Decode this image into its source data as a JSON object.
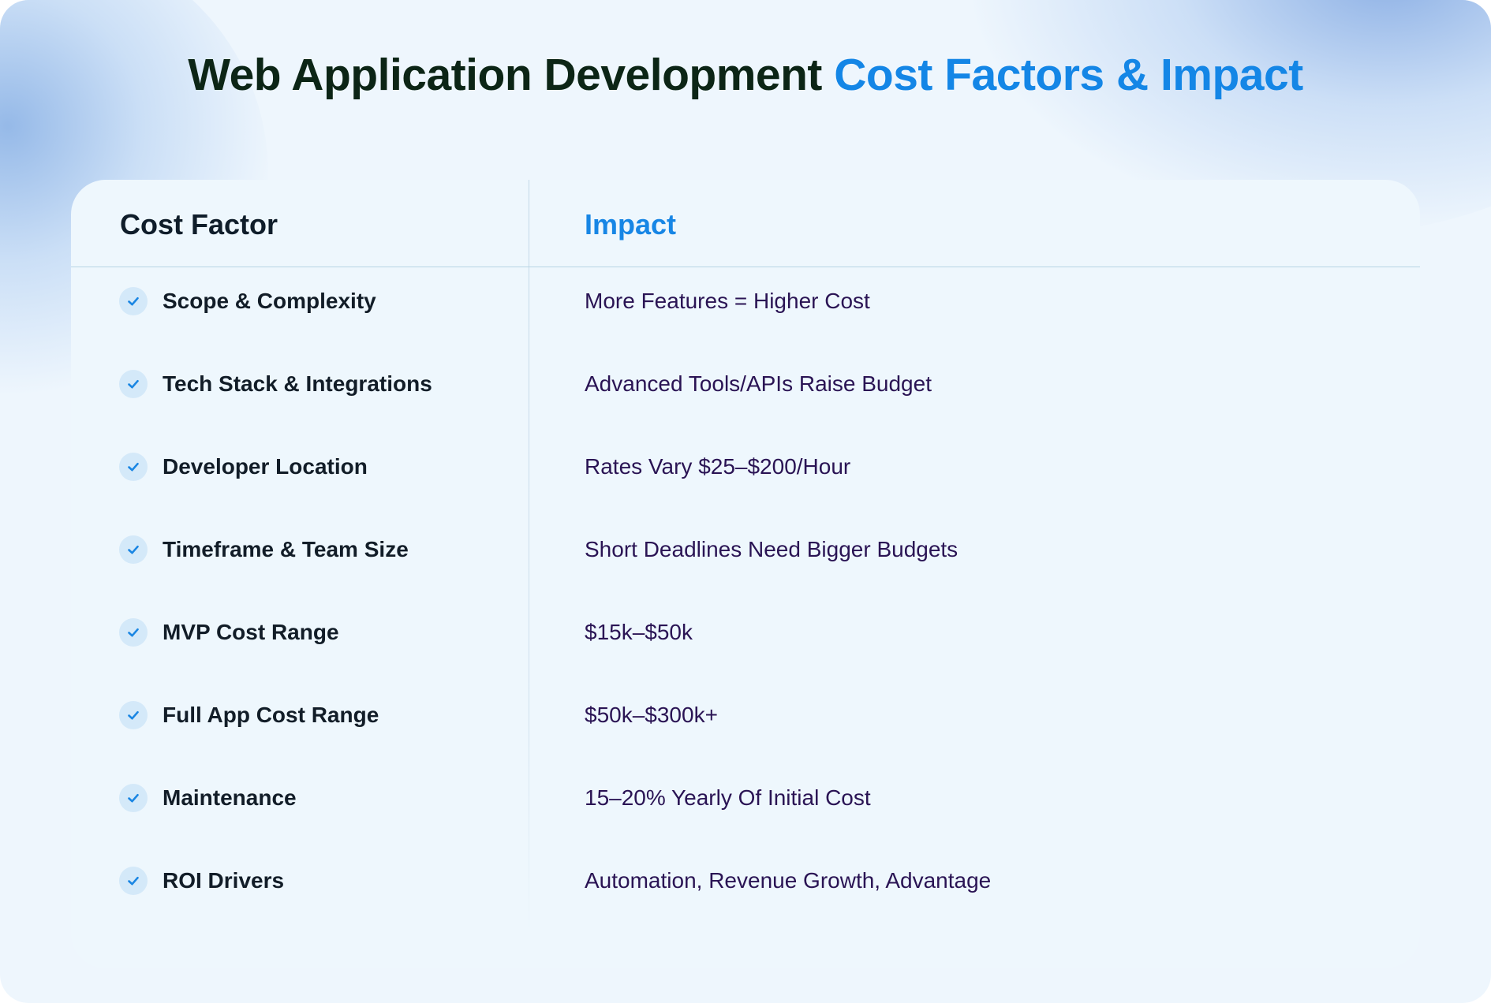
{
  "title": {
    "main": "Web Application Development",
    "accent": "Cost Factors & Impact"
  },
  "colors": {
    "accent": "#1486e6",
    "title_dark": "#0c2516",
    "impact_text": "#2a1454",
    "check_bg": "#d4e9f9"
  },
  "table": {
    "headers": {
      "factor": "Cost Factor",
      "impact": "Impact"
    },
    "rows": [
      {
        "factor": "Scope & Complexity",
        "impact": "More Features = Higher Cost",
        "icon": "check-icon"
      },
      {
        "factor": "Tech Stack & Integrations",
        "impact": "Advanced Tools/APIs Raise Budget",
        "icon": "check-icon"
      },
      {
        "factor": "Developer Location",
        "impact": "Rates Vary $25–$200/Hour",
        "icon": "check-icon"
      },
      {
        "factor": "Timeframe & Team Size",
        "impact": "Short Deadlines Need Bigger Budgets",
        "icon": "check-icon"
      },
      {
        "factor": "MVP Cost Range",
        "impact": "$15k–$50k",
        "icon": "check-icon"
      },
      {
        "factor": "Full App Cost Range",
        "impact": "$50k–$300k+",
        "icon": "check-icon"
      },
      {
        "factor": "Maintenance",
        "impact": "15–20% Yearly Of Initial Cost",
        "icon": "check-icon"
      },
      {
        "factor": "ROI Drivers",
        "impact": "Automation, Revenue Growth, Advantage",
        "icon": "check-icon"
      }
    ]
  }
}
